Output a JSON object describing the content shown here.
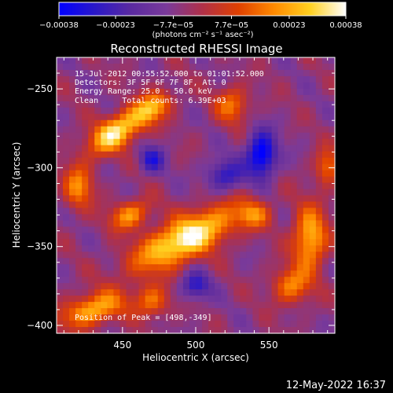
{
  "chart_data": {
    "type": "heatmap",
    "title": "Reconstructed RHESSI Image",
    "xlabel": "Heliocentric X (arcsec)",
    "ylabel": "Heliocentric Y (arcsec)",
    "xlim": [
      405,
      595
    ],
    "ylim": [
      -405,
      -230
    ],
    "x_ticks": [
      450,
      500,
      550
    ],
    "y_ticks": [
      -250,
      -300,
      -350,
      -400
    ],
    "x_tick_labels": [
      "450",
      "500",
      "550"
    ],
    "y_tick_labels": [
      "−250",
      "−300",
      "−350",
      "−400"
    ],
    "colorbar": {
      "range": [
        -0.00038,
        0.00038
      ],
      "tick_labels": [
        "−0.00038",
        "−0.00023",
        "−7.7e−05",
        "7.7e−05",
        "0.00023",
        "0.00038"
      ],
      "units_text": "(photons cm⁻² s⁻¹ asec⁻²)",
      "colors": [
        "#0000ff",
        "#2a18c8",
        "#5a2aa0",
        "#7a3a9a",
        "#b03048",
        "#e04000",
        "#ff8a00",
        "#ffd020",
        "#ffffff"
      ]
    },
    "annotations": [
      "15-Jul-2012 00:55:52.000 to 01:01:52.000",
      "Detectors: 3F 5F 6F 7F 8F, Att 0",
      "Energy Range: 25.0 - 50.0 keV",
      "Clean     Total counts: 6.39E+03"
    ],
    "peak_label": "Position of Peak = [498,-349]",
    "sources": [
      {
        "x": 445,
        "y": -278,
        "sx": 14,
        "sy": 7,
        "rot": -30,
        "amp": 0.9
      },
      {
        "x": 470,
        "y": -262,
        "sx": 10,
        "sy": 6,
        "rot": -30,
        "amp": 0.7
      },
      {
        "x": 493,
        "y": -345,
        "sx": 26,
        "sy": 9,
        "rot": -25,
        "amp": 1.0
      },
      {
        "x": 455,
        "y": -330,
        "sx": 10,
        "sy": 6,
        "rot": -20,
        "amp": 0.6
      },
      {
        "x": 430,
        "y": -390,
        "sx": 16,
        "sy": 7,
        "rot": -15,
        "amp": 0.7
      },
      {
        "x": 578,
        "y": -345,
        "sx": 8,
        "sy": 14,
        "rot": 0,
        "amp": 0.75
      },
      {
        "x": 525,
        "y": -260,
        "sx": 8,
        "sy": 8,
        "rot": 0,
        "amp": 0.5
      },
      {
        "x": 565,
        "y": -375,
        "sx": 9,
        "sy": 8,
        "rot": 0,
        "amp": 0.55
      },
      {
        "x": 420,
        "y": -312,
        "sx": 7,
        "sy": 10,
        "rot": 0,
        "amp": 0.55
      },
      {
        "x": 540,
        "y": -330,
        "sx": 8,
        "sy": 6,
        "rot": 0,
        "amp": 0.45
      },
      {
        "x": 470,
        "y": -385,
        "sx": 8,
        "sy": 7,
        "rot": 0,
        "amp": 0.5
      },
      {
        "x": 590,
        "y": -300,
        "sx": 6,
        "sy": 8,
        "rot": 0,
        "amp": 0.5
      },
      {
        "x": 545,
        "y": -292,
        "sx": 7,
        "sy": 10,
        "rot": 0,
        "amp": -0.85
      },
      {
        "x": 470,
        "y": -295,
        "sx": 6,
        "sy": 6,
        "rot": 0,
        "amp": -0.5
      },
      {
        "x": 520,
        "y": -305,
        "sx": 9,
        "sy": 7,
        "rot": 0,
        "amp": -0.5
      },
      {
        "x": 500,
        "y": -375,
        "sx": 7,
        "sy": 6,
        "rot": 0,
        "amp": -0.5
      }
    ]
  },
  "footer": {
    "date": "12-May-2022 16:37"
  }
}
